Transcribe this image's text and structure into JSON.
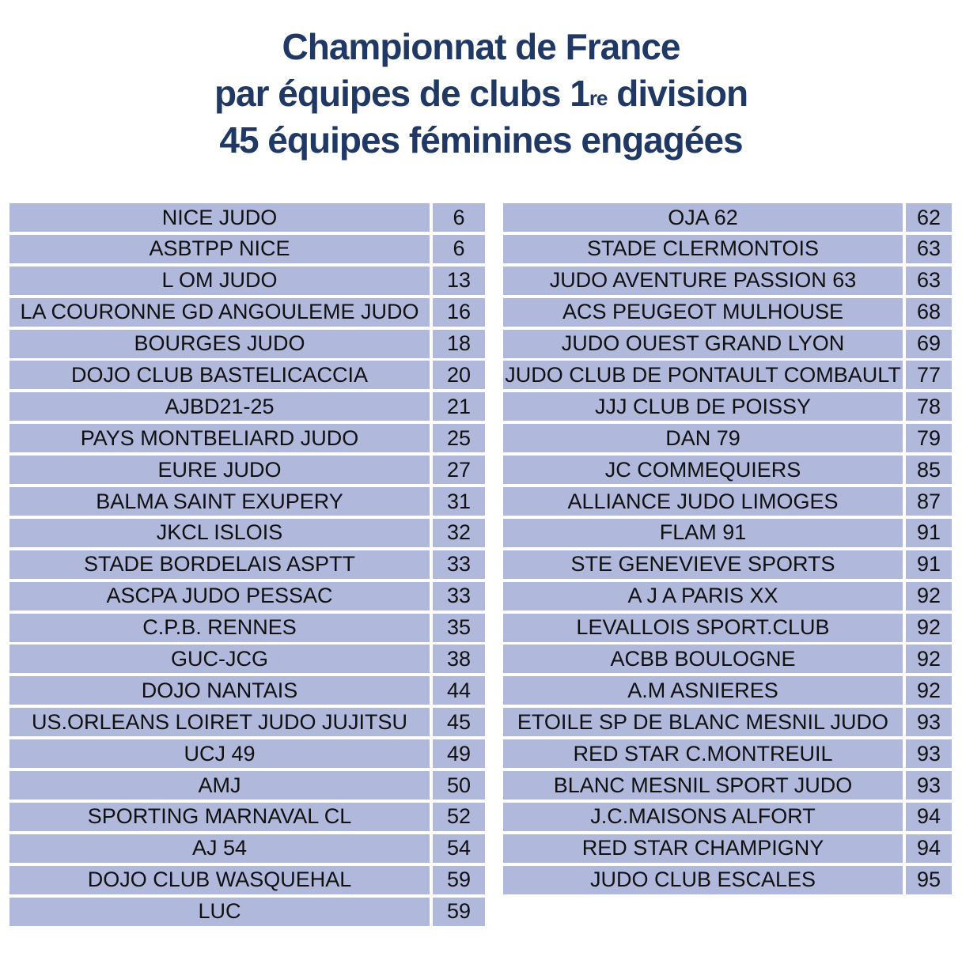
{
  "title": {
    "line1": "Championnat de France",
    "line2_pre": "par équipes de clubs 1",
    "line2_sup": "re",
    "line2_post": " division",
    "line3": "45 équipes féminines engagées"
  },
  "colors": {
    "title": "#1f3864",
    "cell_bg": "#b0b8db",
    "text": "#111111"
  },
  "left_teams": [
    {
      "name": "NICE JUDO",
      "dept": "6"
    },
    {
      "name": "ASBTPP NICE",
      "dept": "6"
    },
    {
      "name": "L OM JUDO",
      "dept": "13"
    },
    {
      "name": "LA COURONNE GD ANGOULEME JUDO",
      "dept": "16"
    },
    {
      "name": "BOURGES JUDO",
      "dept": "18"
    },
    {
      "name": "DOJO CLUB BASTELICACCIA",
      "dept": "20"
    },
    {
      "name": "AJBD21-25",
      "dept": "21"
    },
    {
      "name": "PAYS MONTBELIARD JUDO",
      "dept": "25"
    },
    {
      "name": "EURE JUDO",
      "dept": "27"
    },
    {
      "name": "BALMA SAINT EXUPERY",
      "dept": "31"
    },
    {
      "name": "JKCL ISLOIS",
      "dept": "32"
    },
    {
      "name": "STADE BORDELAIS ASPTT",
      "dept": "33"
    },
    {
      "name": "ASCPA JUDO PESSAC",
      "dept": "33"
    },
    {
      "name": "C.P.B. RENNES",
      "dept": "35"
    },
    {
      "name": "GUC-JCG",
      "dept": "38"
    },
    {
      "name": "DOJO NANTAIS",
      "dept": "44"
    },
    {
      "name": "US.ORLEANS LOIRET JUDO JUJITSU",
      "dept": "45"
    },
    {
      "name": "UCJ 49",
      "dept": "49"
    },
    {
      "name": "AMJ",
      "dept": "50"
    },
    {
      "name": "SPORTING MARNAVAL CL",
      "dept": "52"
    },
    {
      "name": "AJ 54",
      "dept": "54"
    },
    {
      "name": "DOJO CLUB WASQUEHAL",
      "dept": "59"
    },
    {
      "name": "LUC",
      "dept": "59"
    }
  ],
  "right_teams": [
    {
      "name": "OJA 62",
      "dept": "62"
    },
    {
      "name": "STADE CLERMONTOIS",
      "dept": "63"
    },
    {
      "name": "JUDO AVENTURE PASSION 63",
      "dept": "63"
    },
    {
      "name": "ACS PEUGEOT MULHOUSE",
      "dept": "68"
    },
    {
      "name": "JUDO OUEST GRAND LYON",
      "dept": "69"
    },
    {
      "name": "JUDO CLUB DE PONTAULT COMBAULT",
      "dept": "77"
    },
    {
      "name": "JJJ CLUB DE POISSY",
      "dept": "78"
    },
    {
      "name": "DAN 79",
      "dept": "79"
    },
    {
      "name": "JC COMMEQUIERS",
      "dept": "85"
    },
    {
      "name": "ALLIANCE JUDO LIMOGES",
      "dept": "87"
    },
    {
      "name": "FLAM 91",
      "dept": "91"
    },
    {
      "name": "STE GENEVIEVE SPORTS",
      "dept": "91"
    },
    {
      "name": "A J A PARIS XX",
      "dept": "92"
    },
    {
      "name": "LEVALLOIS SPORT.CLUB",
      "dept": "92"
    },
    {
      "name": "ACBB BOULOGNE",
      "dept": "92"
    },
    {
      "name": "A.M ASNIERES",
      "dept": "92"
    },
    {
      "name": "ETOILE SP DE BLANC MESNIL JUDO",
      "dept": "93"
    },
    {
      "name": "RED STAR C.MONTREUIL",
      "dept": "93"
    },
    {
      "name": "BLANC MESNIL SPORT JUDO",
      "dept": "93"
    },
    {
      "name": "J.C.MAISONS ALFORT",
      "dept": "94"
    },
    {
      "name": "RED STAR CHAMPIGNY",
      "dept": "94"
    },
    {
      "name": "JUDO CLUB ESCALES",
      "dept": "95"
    }
  ]
}
